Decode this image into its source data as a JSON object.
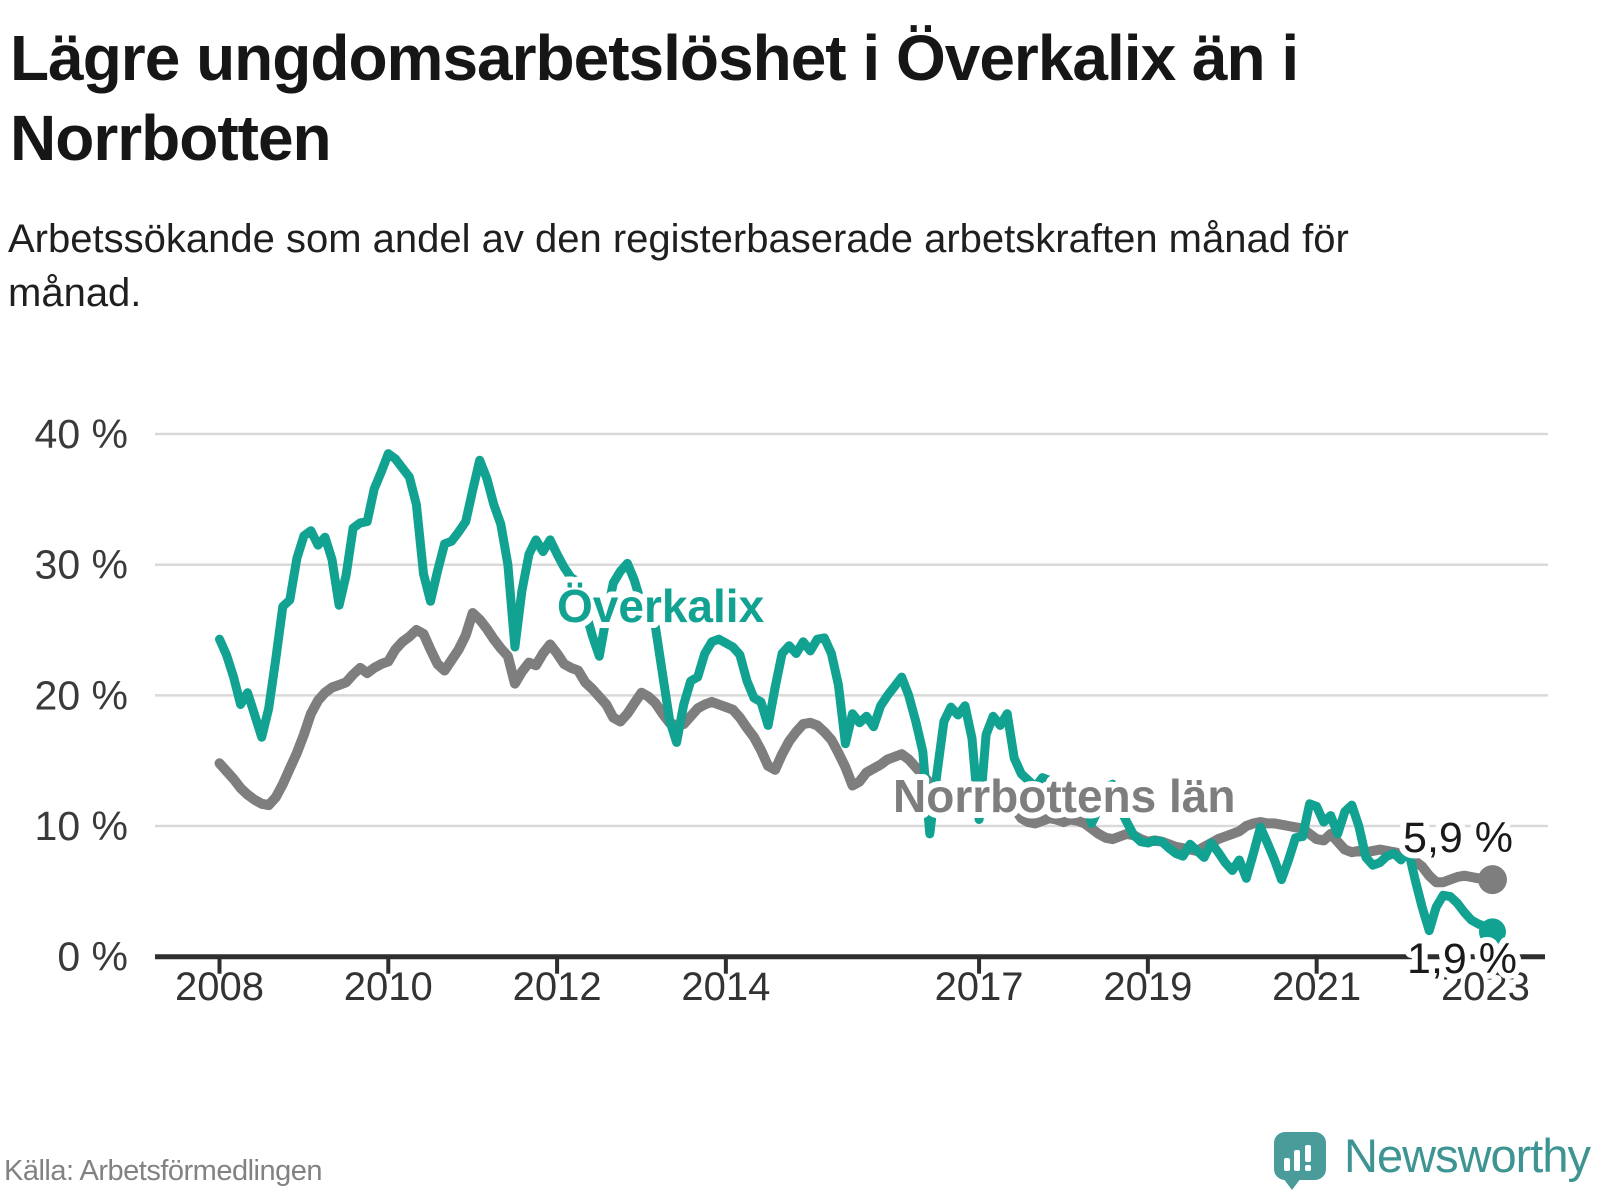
{
  "title": "Lägre ungdomsarbetslöshet i Överkalix än i Norrbotten",
  "subtitle": "Arbetssökande som andel av den registerbaserade arbetskraften månad för månad.",
  "source": "Källa: Arbetsförmedlingen",
  "brand": {
    "wordmark": "Newsworthy",
    "icon": "speech-bubble-bar-chart",
    "icon_color": "#4a9c9a",
    "text_color": "#3d9492"
  },
  "chart_data": {
    "type": "line",
    "title": "",
    "xlabel": "",
    "ylabel": "",
    "x_unit": "month",
    "x_start": "2008-01",
    "x_end": "2023-02",
    "ylim": [
      0,
      40
    ],
    "grid": "horizontal",
    "legend_position": "inline-labels",
    "y_ticks": [
      {
        "value": 0,
        "label": "0 %"
      },
      {
        "value": 10,
        "label": "10 %"
      },
      {
        "value": 20,
        "label": "20 %"
      },
      {
        "value": 30,
        "label": "30 %"
      },
      {
        "value": 40,
        "label": "40 %"
      }
    ],
    "x_ticks": [
      {
        "year": 2008,
        "month_index": 0,
        "label": "2008"
      },
      {
        "year": 2010,
        "month_index": 24,
        "label": "2010"
      },
      {
        "year": 2012,
        "month_index": 48,
        "label": "2012"
      },
      {
        "year": 2014,
        "month_index": 72,
        "label": "2014"
      },
      {
        "year": 2017,
        "month_index": 108,
        "label": "2017"
      },
      {
        "year": 2019,
        "month_index": 132,
        "label": "2019"
      },
      {
        "year": 2021,
        "month_index": 156,
        "label": "2021"
      },
      {
        "year": 2023,
        "month_index": 180,
        "label": "2023"
      }
    ],
    "series": [
      {
        "name": "Norrbottens län",
        "label_text": "Norrbottens län",
        "end_label": "5,9 %",
        "end_value": 5.9,
        "color": "#7e7e7e",
        "values": [
          14.8,
          14.2,
          13.6,
          12.9,
          12.4,
          12,
          11.7,
          11.6,
          12.2,
          13.2,
          14.4,
          15.6,
          17,
          18.6,
          19.6,
          20.2,
          20.6,
          20.8,
          21,
          21.6,
          22.1,
          21.7,
          22.1,
          22.4,
          22.6,
          23.5,
          24.1,
          24.5,
          25,
          24.7,
          23.5,
          22.4,
          21.9,
          22.7,
          23.5,
          24.6,
          26.3,
          25.8,
          25.1,
          24.3,
          23.6,
          23,
          20.9,
          21.8,
          22.5,
          22.3,
          23.2,
          23.9,
          23.2,
          22.4,
          22.1,
          21.9,
          21,
          20.5,
          19.9,
          19.3,
          18.3,
          18,
          18.6,
          19.4,
          20.2,
          19.9,
          19.4,
          18.6,
          17.9,
          17.7,
          17.8,
          18.4,
          19,
          19.3,
          19.5,
          19.3,
          19.1,
          18.9,
          18.3,
          17.5,
          16.8,
          15.8,
          14.6,
          14.3,
          15.5,
          16.5,
          17.2,
          17.8,
          17.9,
          17.7,
          17.2,
          16.6,
          15.6,
          14.5,
          13.1,
          13.4,
          14.1,
          14.4,
          14.7,
          15.1,
          15.3,
          15.5,
          15.1,
          14.5,
          13.9,
          13.3,
          12.7,
          12.5,
          12.7,
          13,
          13,
          12.8,
          12.7,
          12.6,
          12.4,
          12.2,
          12,
          11.4,
          10.6,
          10.3,
          10.2,
          10.4,
          10.6,
          10.5,
          10.3,
          10.5,
          10.4,
          10.2,
          9.8,
          9.4,
          9.1,
          9,
          9.2,
          9.4,
          9.3,
          9,
          8.8,
          8.9,
          8.8,
          8.6,
          8.4,
          8.3,
          8.2,
          8.1,
          8.4,
          8.7,
          9,
          9.2,
          9.4,
          9.6,
          10,
          10.2,
          10.3,
          10.2,
          10.2,
          10.1,
          10,
          9.9,
          9.8,
          9.4,
          9,
          8.9,
          9.4,
          8.8,
          8.2,
          8,
          8.1,
          8,
          8.1,
          8.2,
          8.1,
          8,
          7.9,
          7.8,
          7.3,
          6.9,
          6.2,
          5.7,
          5.7,
          5.9,
          6.1,
          6.2,
          6.1,
          6,
          6,
          5.9
        ]
      },
      {
        "name": "Överkalix",
        "label_text": "Överkalix",
        "end_label": "1,9 %",
        "end_value": 1.9,
        "color": "#11a292",
        "values": [
          24.3,
          23.1,
          21.4,
          19.3,
          20.2,
          18.5,
          16.8,
          19,
          22.8,
          26.8,
          27.3,
          30.5,
          32.2,
          32.6,
          31.5,
          32.1,
          30.4,
          26.9,
          29.2,
          32.8,
          33.2,
          33.3,
          35.8,
          37.1,
          38.5,
          38.1,
          37.4,
          36.7,
          34.6,
          29.3,
          27.2,
          29.5,
          31.6,
          31.8,
          32.5,
          33.3,
          35.7,
          38,
          36.6,
          34.6,
          33.1,
          30,
          23.7,
          28,
          30.8,
          31.9,
          31,
          31.9,
          30.8,
          29.8,
          29,
          28.7,
          26.5,
          24.6,
          23,
          26,
          28.6,
          29.5,
          30.1,
          28.8,
          27,
          26.3,
          25.2,
          21.6,
          18.1,
          16.4,
          19.3,
          21.1,
          21.4,
          23.2,
          24.1,
          24.3,
          24,
          23.7,
          23.1,
          21.1,
          19.8,
          19.5,
          17.7,
          20.6,
          23.2,
          23.8,
          23.2,
          24.1,
          23.4,
          24.3,
          24.4,
          23.2,
          20.8,
          16.3,
          18.6,
          17.9,
          18.4,
          17.6,
          19.2,
          20,
          20.7,
          21.4,
          20,
          18,
          15.7,
          9.4,
          14,
          18,
          19.1,
          18.5,
          19.2,
          16.7,
          10.5,
          17,
          18.4,
          17.7,
          18.6,
          15.2,
          14,
          13.5,
          13,
          13.7,
          13.5,
          12.3,
          11.7,
          12.4,
          12.5,
          12.3,
          10.2,
          11.3,
          13,
          13.2,
          11.4,
          10.3,
          9.3,
          8.8,
          8.7,
          8.9,
          8.8,
          8.3,
          7.9,
          7.7,
          8.6,
          8.1,
          7.6,
          8.7,
          8,
          7.2,
          6.6,
          7.4,
          6,
          7.9,
          9.9,
          8.7,
          7.4,
          5.9,
          7.4,
          9.1,
          9.2,
          11.7,
          11.5,
          10.3,
          10.8,
          9.4,
          11.1,
          11.6,
          10,
          7.6,
          7,
          7.2,
          7.7,
          7.9,
          7.4,
          8.2,
          5.9,
          3.8,
          2,
          3.8,
          4.7,
          4.6,
          4.1,
          3.4,
          2.8,
          2.5,
          2.3,
          1.9
        ]
      }
    ],
    "colors": {
      "accent": "#11a292",
      "comparison": "#7e7e7e",
      "gridline": "#d9d9d9",
      "axis": "#2e2e2e",
      "tick_label": "#3a3a3a",
      "annotation": "#1a1a1a"
    }
  }
}
